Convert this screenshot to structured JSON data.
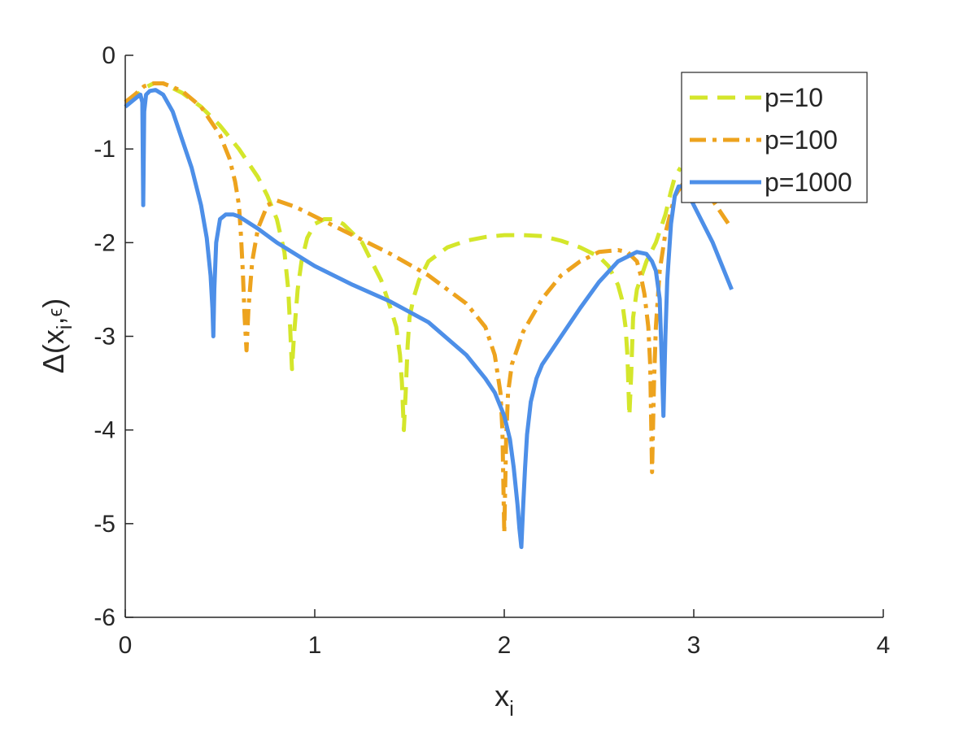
{
  "chart_data": {
    "type": "line",
    "xlabel": "x",
    "xlabel_sub": "i",
    "ylabel_main": "Δ(x",
    "ylabel_sub": "i",
    "ylabel_mid": ",",
    "ylabel_sup": "ϵ",
    "ylabel_close": ")",
    "xlim": [
      0,
      4
    ],
    "ylim": [
      -6,
      0
    ],
    "xticks": [
      0,
      1,
      2,
      3,
      4
    ],
    "xtick_labels": [
      "0",
      "1",
      "2",
      "3",
      "4"
    ],
    "yticks": [
      0,
      -1,
      -2,
      -3,
      -4,
      -5,
      -6
    ],
    "ytick_labels": [
      "0",
      "-1",
      "-2",
      "-3",
      "-4",
      "-5",
      "-6"
    ],
    "grid": false,
    "legend_position": "top-right",
    "series": [
      {
        "name": "p=10",
        "color": "#D4E62B",
        "dash": "dashed",
        "x": [
          0.0,
          0.05,
          0.1,
          0.15,
          0.2,
          0.3,
          0.4,
          0.5,
          0.6,
          0.7,
          0.75,
          0.8,
          0.84,
          0.86,
          0.87,
          0.88,
          0.89,
          0.91,
          0.93,
          0.96,
          1.0,
          1.05,
          1.1,
          1.15,
          1.2,
          1.25,
          1.3,
          1.35,
          1.4,
          1.43,
          1.45,
          1.46,
          1.47,
          1.48,
          1.49,
          1.5,
          1.52,
          1.55,
          1.6,
          1.7,
          1.8,
          1.9,
          2.0,
          2.1,
          2.2,
          2.3,
          2.4,
          2.5,
          2.55,
          2.6,
          2.62,
          2.64,
          2.65,
          2.66,
          2.67,
          2.68,
          2.7,
          2.75,
          2.8,
          2.85,
          2.88,
          2.9,
          2.93
        ],
        "y": [
          -0.5,
          -0.45,
          -0.35,
          -0.3,
          -0.3,
          -0.4,
          -0.55,
          -0.75,
          -1.0,
          -1.3,
          -1.5,
          -1.75,
          -2.1,
          -2.5,
          -2.9,
          -3.35,
          -3.0,
          -2.5,
          -2.2,
          -1.95,
          -1.8,
          -1.75,
          -1.75,
          -1.8,
          -1.9,
          -2.0,
          -2.2,
          -2.4,
          -2.7,
          -2.9,
          -3.2,
          -3.5,
          -4.0,
          -3.6,
          -3.1,
          -2.8,
          -2.6,
          -2.4,
          -2.2,
          -2.05,
          -1.98,
          -1.94,
          -1.92,
          -1.92,
          -1.93,
          -1.98,
          -2.05,
          -2.15,
          -2.25,
          -2.45,
          -2.6,
          -2.9,
          -3.2,
          -3.85,
          -3.4,
          -2.8,
          -2.5,
          -2.2,
          -2.0,
          -1.7,
          -1.45,
          -1.3,
          -1.2
        ]
      },
      {
        "name": "p=100",
        "color": "#EDA31E",
        "dash": "dashdot",
        "x": [
          0.0,
          0.05,
          0.1,
          0.15,
          0.2,
          0.3,
          0.4,
          0.5,
          0.55,
          0.58,
          0.6,
          0.61,
          0.62,
          0.63,
          0.64,
          0.65,
          0.67,
          0.7,
          0.75,
          0.8,
          0.9,
          1.0,
          1.2,
          1.4,
          1.6,
          1.8,
          1.9,
          1.95,
          1.98,
          1.99,
          2.0,
          2.01,
          2.02,
          2.04,
          2.1,
          2.2,
          2.3,
          2.4,
          2.5,
          2.6,
          2.65,
          2.7,
          2.72,
          2.74,
          2.76,
          2.77,
          2.78,
          2.79,
          2.8,
          2.82,
          2.85,
          2.9,
          2.95,
          3.0,
          3.1,
          3.2
        ],
        "y": [
          -0.5,
          -0.42,
          -0.33,
          -0.3,
          -0.3,
          -0.38,
          -0.55,
          -0.85,
          -1.1,
          -1.35,
          -1.6,
          -1.9,
          -2.3,
          -2.8,
          -3.15,
          -2.7,
          -2.2,
          -1.85,
          -1.6,
          -1.55,
          -1.62,
          -1.72,
          -1.92,
          -2.12,
          -2.35,
          -2.65,
          -2.9,
          -3.2,
          -3.6,
          -4.0,
          -5.1,
          -4.1,
          -3.6,
          -3.3,
          -2.95,
          -2.6,
          -2.35,
          -2.2,
          -2.1,
          -2.08,
          -2.1,
          -2.2,
          -2.35,
          -2.55,
          -2.9,
          -3.3,
          -4.45,
          -3.5,
          -2.9,
          -2.3,
          -1.9,
          -1.5,
          -1.35,
          -1.35,
          -1.55,
          -1.85
        ]
      },
      {
        "name": "p=1000",
        "color": "#4D8FE8",
        "dash": "solid",
        "x": [
          0.0,
          0.03,
          0.06,
          0.08,
          0.09,
          0.095,
          0.1,
          0.11,
          0.13,
          0.16,
          0.2,
          0.25,
          0.3,
          0.35,
          0.4,
          0.43,
          0.45,
          0.46,
          0.465,
          0.47,
          0.48,
          0.5,
          0.53,
          0.57,
          0.6,
          0.7,
          0.8,
          1.0,
          1.2,
          1.4,
          1.6,
          1.8,
          1.9,
          1.95,
          2.0,
          2.03,
          2.05,
          2.07,
          2.08,
          2.09,
          2.1,
          2.11,
          2.12,
          2.14,
          2.17,
          2.2,
          2.3,
          2.4,
          2.5,
          2.6,
          2.7,
          2.75,
          2.78,
          2.8,
          2.82,
          2.83,
          2.84,
          2.85,
          2.86,
          2.88,
          2.9,
          2.92,
          2.95,
          3.0,
          3.1,
          3.2
        ],
        "y": [
          -0.55,
          -0.5,
          -0.45,
          -0.42,
          -0.5,
          -1.6,
          -0.6,
          -0.42,
          -0.38,
          -0.37,
          -0.42,
          -0.6,
          -0.9,
          -1.2,
          -1.6,
          -1.95,
          -2.35,
          -2.7,
          -3.0,
          -2.5,
          -2.0,
          -1.75,
          -1.7,
          -1.7,
          -1.72,
          -1.85,
          -2.0,
          -2.25,
          -2.45,
          -2.63,
          -2.85,
          -3.2,
          -3.45,
          -3.6,
          -3.85,
          -4.1,
          -4.4,
          -4.8,
          -5.05,
          -5.25,
          -4.8,
          -4.4,
          -4.05,
          -3.7,
          -3.45,
          -3.3,
          -3.0,
          -2.7,
          -2.42,
          -2.2,
          -2.1,
          -2.12,
          -2.2,
          -2.3,
          -2.6,
          -3.2,
          -3.85,
          -3.0,
          -2.4,
          -1.8,
          -1.5,
          -1.4,
          -1.4,
          -1.6,
          -2.0,
          -2.5
        ]
      }
    ]
  }
}
